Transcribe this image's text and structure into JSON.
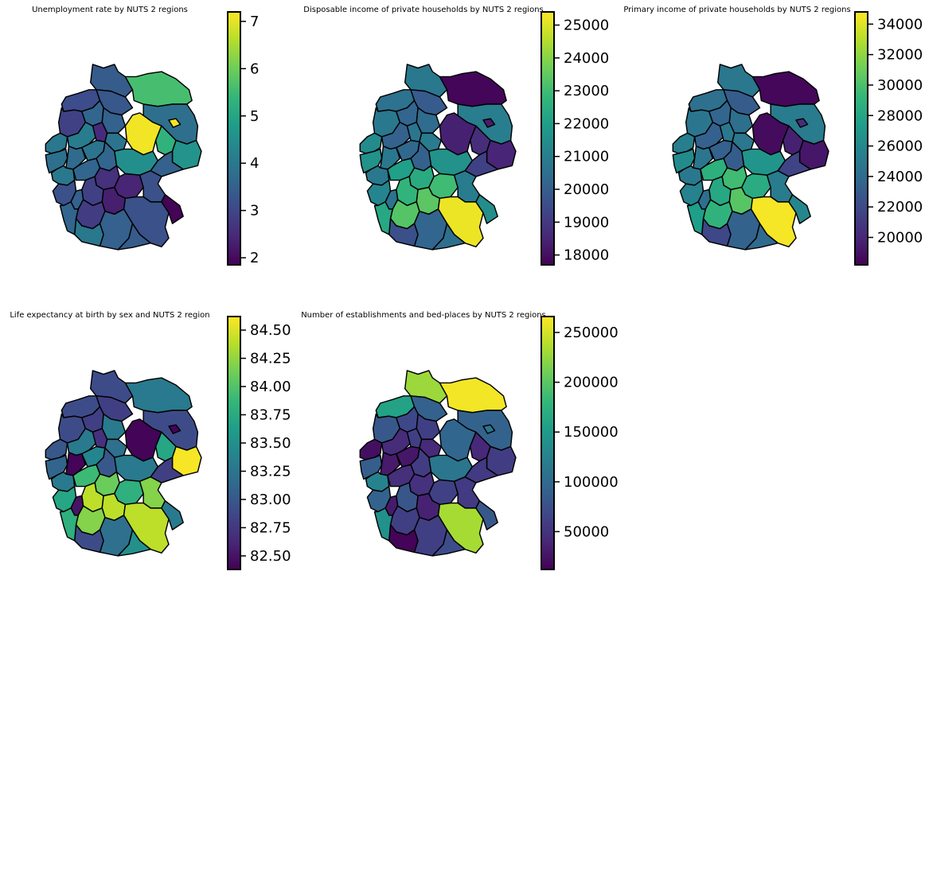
{
  "colormap": "viridis",
  "viridis_stops": [
    "#440154",
    "#482878",
    "#3e4989",
    "#31688e",
    "#26828e",
    "#1f9e89",
    "#35b779",
    "#6ece58",
    "#b5de2b",
    "#fde725"
  ],
  "outline_color": "#000000",
  "panels": [
    {
      "title": "Unemployment rate by NUTS 2 regions",
      "vmin": 1.85,
      "vmax": 7.2,
      "ticks": [
        "2",
        "3",
        "4",
        "5",
        "6",
        "7"
      ],
      "tick_values": [
        2,
        3,
        4,
        5,
        6,
        7
      ],
      "region_values": [
        3.4,
        3.1,
        3.3,
        5.6,
        2.9,
        3.6,
        3.5,
        3.8,
        7.1,
        7.1,
        4.0,
        4.1,
        2.5,
        3.9,
        3.8,
        3.7,
        3.9,
        4.5,
        3.6,
        5.3,
        4.6,
        3.5,
        4.0,
        3.6,
        2.6,
        2.9,
        3.2,
        3.5,
        2.4,
        2.3,
        3.2,
        2.8,
        3.2,
        1.9,
        4.0,
        3.5,
        3.4,
        3.6
      ]
    },
    {
      "title": "Disposable income of private households by NUTS 2 regions",
      "vmin": 17700,
      "vmax": 25400,
      "ticks": [
        "18000",
        "19000",
        "20000",
        "21000",
        "22000",
        "23000",
        "24000",
        "25000"
      ],
      "tick_values": [
        18000,
        19000,
        20000,
        21000,
        22000,
        23000,
        24000,
        25000
      ],
      "region_values": [
        20800,
        20600,
        19900,
        17800,
        20800,
        20200,
        20400,
        21000,
        18400,
        18300,
        21400,
        20100,
        20700,
        20900,
        21600,
        20800,
        20300,
        21600,
        20100,
        18700,
        18500,
        19200,
        20800,
        22000,
        22400,
        22700,
        21200,
        20600,
        23000,
        23400,
        20900,
        23300,
        25200,
        21500,
        19600,
        20200,
        20500,
        22300
      ]
    },
    {
      "title": "Primary income of private households by NUTS 2 regions",
      "vmin": 18200,
      "vmax": 34800,
      "ticks": [
        "20000",
        "22000",
        "24000",
        "26000",
        "28000",
        "30000",
        "32000",
        "34000"
      ],
      "tick_values": [
        20000,
        22000,
        24000,
        26000,
        28000,
        30000,
        32000,
        34000
      ],
      "region_values": [
        24800,
        24300,
        23000,
        18500,
        24700,
        23600,
        24200,
        25100,
        18700,
        20400,
        25400,
        23300,
        24900,
        24800,
        26200,
        24700,
        23300,
        26800,
        23100,
        19700,
        19200,
        21600,
        24900,
        28700,
        29600,
        28100,
        25600,
        24200,
        28400,
        30400,
        25100,
        28900,
        34600,
        25900,
        21800,
        23400,
        23900,
        27400
      ]
    },
    {
      "title": "Life expectancy at birth by sex and NUTS 2 region",
      "vmin": 82.38,
      "vmax": 84.62,
      "ticks": [
        "82.50",
        "82.75",
        "83.00",
        "83.25",
        "83.50",
        "83.75",
        "84.00",
        "84.25",
        "84.50"
      ],
      "tick_values": [
        82.5,
        82.75,
        83.0,
        83.25,
        83.5,
        83.75,
        84.0,
        84.25,
        84.5
      ],
      "region_values": [
        82.9,
        82.9,
        82.8,
        83.3,
        82.9,
        82.8,
        83.3,
        82.9,
        82.4,
        82.4,
        83.0,
        83.3,
        82.7,
        83.2,
        83.1,
        82.4,
        83.4,
        83.3,
        83.0,
        83.7,
        84.6,
        82.8,
        83.3,
        83.9,
        84.1,
        84.4,
        83.7,
        82.5,
        83.8,
        84.4,
        84.2,
        84.2,
        84.4,
        83.3,
        82.9,
        83.2,
        83.5,
        83.8
      ]
    },
    {
      "title": "Number of establishments and bed-places by NUTS 2 regions",
      "vmin": 12000,
      "vmax": 266000,
      "ticks": [
        "50000",
        "100000",
        "150000",
        "200000",
        "250000"
      ],
      "tick_values": [
        50000,
        100000,
        150000,
        200000,
        250000
      ],
      "region_values": [
        228000,
        158000,
        90000,
        262000,
        82000,
        68000,
        60000,
        92000,
        96000,
        110000,
        22000,
        44000,
        60000,
        42000,
        88000,
        30000,
        28000,
        112000,
        58000,
        40000,
        58000,
        56000,
        126000,
        46000,
        48000,
        80000,
        92000,
        30000,
        62000,
        36000,
        56000,
        60000,
        232000,
        82000,
        14000,
        60000,
        72000,
        140000
      ]
    }
  ]
}
